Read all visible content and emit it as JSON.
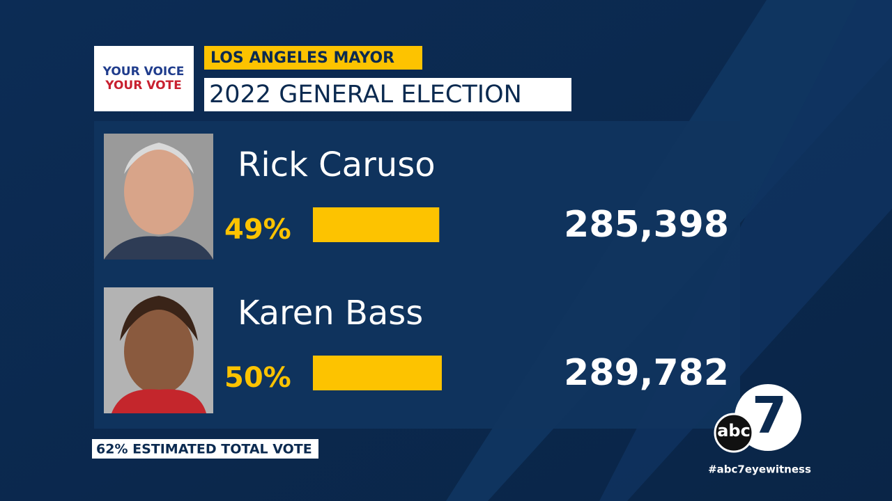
{
  "header": {
    "badge_line1": "YOUR VOICE",
    "badge_line2": "YOUR VOTE",
    "race": "LOS ANGELES MAYOR",
    "title": "2022 GENERAL ELECTION"
  },
  "chart_data": {
    "type": "bar",
    "orientation": "horizontal",
    "categories": [
      "Rick Caruso",
      "Karen Bass"
    ],
    "values": [
      49,
      50
    ],
    "value_labels": [
      "49%",
      "50%"
    ],
    "votes": [
      "285,398",
      "289,782"
    ],
    "color": "#fdc300"
  },
  "footer": "62% ESTIMATED TOTAL VOTE",
  "logo": {
    "network": "abc",
    "channel": "7"
  },
  "hashtag": "#abc7eyewitness"
}
